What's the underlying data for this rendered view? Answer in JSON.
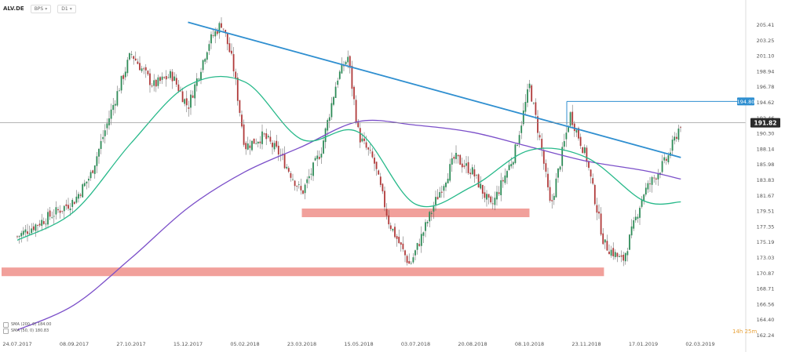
{
  "toolbar": {
    "symbol": "ALV.DE",
    "timeframe": "D1",
    "chart_mode": "BPS",
    "chart_mode_icon": "chevron-down-icon",
    "timeframe_icon": "chevron-down-icon"
  },
  "countdown": "14h 25m",
  "legend": [
    {
      "label": "SMA (200, 0) 184.00",
      "color": "#7b4fc9"
    },
    {
      "label": "SMA (50, 0) 180.83",
      "color": "#27b98a"
    }
  ],
  "colors": {
    "bull": "#2e8b57",
    "bear": "#b03a3a",
    "trendline": "#2f8fd0",
    "sma200": "#7b4fc9",
    "sma50": "#27b98a",
    "zone": "#ef8f8a",
    "price_label_bg": "#2b2b2b",
    "level_label_bg": "#2f8fd0"
  },
  "chart_data": {
    "type": "candlestick",
    "instrument": "ALV.DE",
    "timeframe": "D1",
    "x_tick_labels": [
      "24.07.2017",
      "08.09.2017",
      "27.10.2017",
      "15.12.2017",
      "05.02.2018",
      "23.03.2018",
      "15.05.2018",
      "03.07.2018",
      "20.08.2018",
      "08.10.2018",
      "23.11.2018",
      "17.01.2019",
      "02.03.2019"
    ],
    "y_tick_labels": [
      "205.41",
      "203.25",
      "201.10",
      "198.94",
      "196.78",
      "194.62",
      "192.46",
      "190.30",
      "188.14",
      "185.98",
      "183.83",
      "181.67",
      "179.51",
      "177.35",
      "175.19",
      "173.03",
      "170.87",
      "168.71",
      "166.56",
      "164.40",
      "162.24"
    ],
    "ylim": [
      162.24,
      206.5
    ],
    "last_price": "191.82",
    "level_label": "194.80",
    "price_path": [
      [
        "24.07.2017",
        176.0
      ],
      [
        "08.09.2017",
        181.0
      ],
      [
        "22.09.2017",
        184.5
      ],
      [
        "13.10.2017",
        195.0
      ],
      [
        "27.10.2017",
        201.5
      ],
      [
        "15.11.2017",
        197.0
      ],
      [
        "01.12.2017",
        198.5
      ],
      [
        "15.12.2017",
        194.0
      ],
      [
        "03.01.2018",
        203.0
      ],
      [
        "15.01.2018",
        205.8
      ],
      [
        "25.01.2018",
        200.0
      ],
      [
        "05.02.2018",
        188.5
      ],
      [
        "20.02.2018",
        190.0
      ],
      [
        "05.03.2018",
        187.5
      ],
      [
        "23.03.2018",
        182.0
      ],
      [
        "10.04.2018",
        188.0
      ],
      [
        "25.04.2018",
        198.0
      ],
      [
        "05.05.2018",
        201.0
      ],
      [
        "15.05.2018",
        190.0
      ],
      [
        "28.05.2018",
        186.5
      ],
      [
        "10.06.2018",
        178.0
      ],
      [
        "28.06.2018",
        172.0
      ],
      [
        "03.07.2018",
        174.0
      ],
      [
        "20.07.2018",
        181.0
      ],
      [
        "05.08.2018",
        187.0
      ],
      [
        "20.08.2018",
        185.0
      ],
      [
        "05.09.2018",
        180.0
      ],
      [
        "25.09.2018",
        187.5
      ],
      [
        "08.10.2018",
        197.0
      ],
      [
        "18.10.2018",
        188.0
      ],
      [
        "25.10.2018",
        180.0
      ],
      [
        "10.11.2018",
        193.0
      ],
      [
        "23.11.2018",
        187.0
      ],
      [
        "10.12.2018",
        175.0
      ],
      [
        "28.12.2018",
        172.5
      ],
      [
        "17.01.2019",
        182.0
      ],
      [
        "05.02.2019",
        187.0
      ],
      [
        "15.02.2019",
        191.82
      ]
    ],
    "sma200_path": [
      [
        "24.07.2017",
        163.0
      ],
      [
        "08.09.2017",
        166.5
      ],
      [
        "27.10.2017",
        173.0
      ],
      [
        "15.12.2017",
        180.0
      ],
      [
        "05.02.2018",
        185.0
      ],
      [
        "23.03.2018",
        188.5
      ],
      [
        "15.05.2018",
        192.0
      ],
      [
        "03.07.2018",
        191.5
      ],
      [
        "20.08.2018",
        190.5
      ],
      [
        "08.10.2018",
        188.5
      ],
      [
        "23.11.2018",
        186.5
      ],
      [
        "17.01.2019",
        185.2
      ],
      [
        "15.02.2019",
        184.0
      ]
    ],
    "sma50_path": [
      [
        "24.07.2017",
        175.5
      ],
      [
        "08.09.2017",
        179.5
      ],
      [
        "27.10.2017",
        189.0
      ],
      [
        "15.12.2017",
        197.0
      ],
      [
        "05.02.2018",
        197.5
      ],
      [
        "23.03.2018",
        189.5
      ],
      [
        "15.05.2018",
        190.5
      ],
      [
        "03.07.2018",
        180.5
      ],
      [
        "20.08.2018",
        183.0
      ],
      [
        "08.10.2018",
        188.0
      ],
      [
        "23.11.2018",
        187.0
      ],
      [
        "17.01.2019",
        181.0
      ],
      [
        "15.02.2019",
        180.83
      ]
    ],
    "trendline": [
      [
        "15.12.2017",
        205.8
      ],
      [
        "15.02.2019",
        187.0
      ]
    ],
    "horizontal_level": 194.8,
    "support_zones": [
      {
        "from": "23.03.2018",
        "to": "08.10.2018",
        "low": 178.7,
        "high": 179.9
      },
      {
        "from": "24.07.2017",
        "to": "10.12.2018",
        "low": 170.5,
        "high": 171.7
      }
    ],
    "grid": false
  }
}
